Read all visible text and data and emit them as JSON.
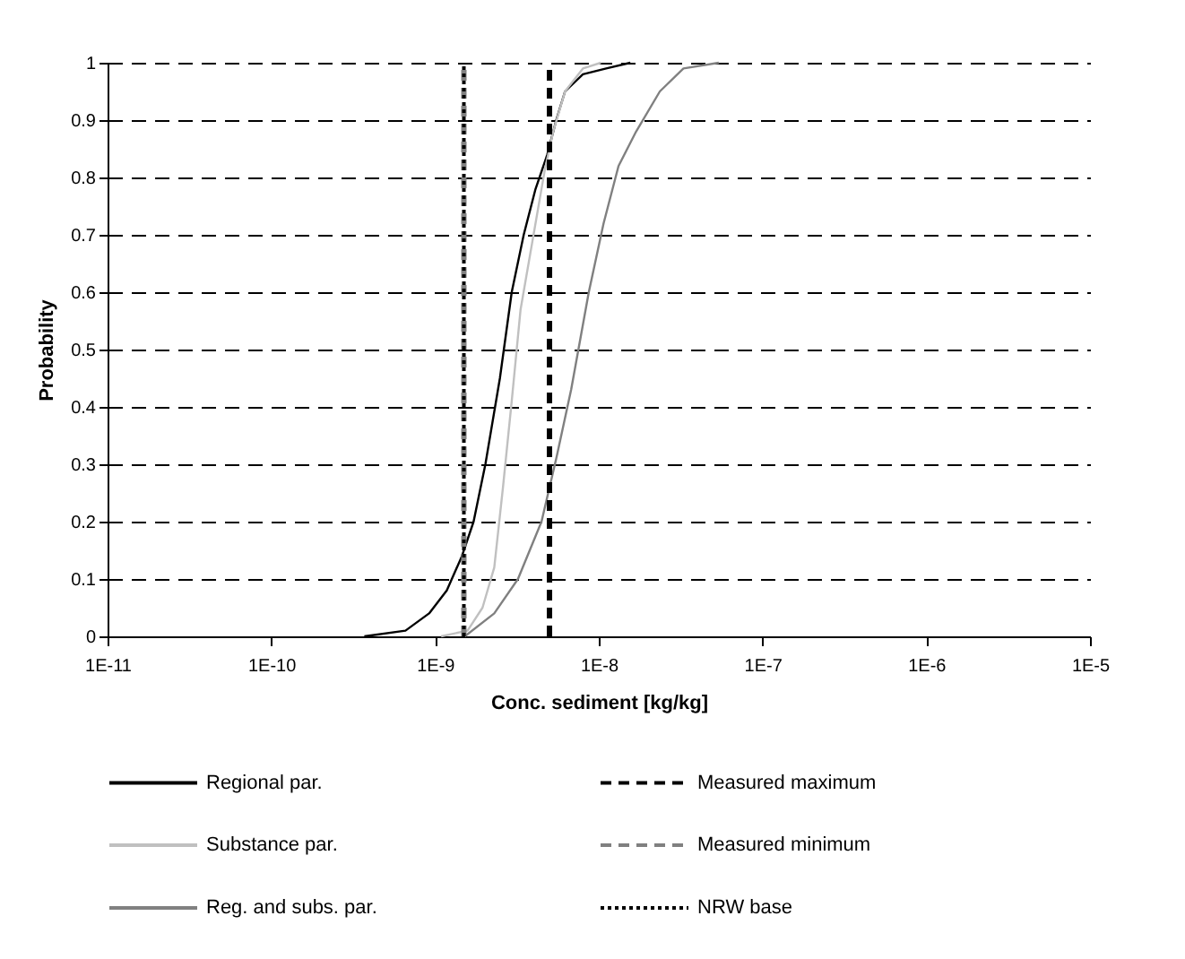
{
  "chart_data": {
    "type": "line",
    "xlabel": "Conc. sediment [kg/kg]",
    "ylabel": "Probability",
    "log": "x",
    "xlim": [
      1e-11,
      1e-05
    ],
    "xticks": [
      {
        "value": 1e-11,
        "label": "1E-11"
      },
      {
        "value": 1e-10,
        "label": "1E-10"
      },
      {
        "value": 1e-09,
        "label": "1E-9"
      },
      {
        "value": 1e-08,
        "label": "1E-8"
      },
      {
        "value": 1e-07,
        "label": "1E-7"
      },
      {
        "value": 1e-06,
        "label": "1E-6"
      },
      {
        "value": 1e-05,
        "label": "1E-5"
      }
    ],
    "ylim": [
      0,
      1
    ],
    "yticks": [
      {
        "value": 0,
        "label": "0"
      },
      0.1,
      0.2,
      0.3,
      0.4,
      0.5,
      0.6,
      0.7,
      0.8,
      0.9,
      {
        "value": 1,
        "label": "1"
      }
    ],
    "grid": "y",
    "legend": "bottom",
    "marker": "none",
    "line_style": "solid",
    "series": [
      {
        "name": "Regional par.",
        "color": "#000000",
        "x": [
          3.7e-10,
          6.6e-10,
          9.2e-10,
          1.18e-09,
          1.46e-09,
          1.72e-09,
          2.03e-09,
          2.49e-09,
          2.94e-09,
          3.48e-09,
          4.11e-09,
          4.85e-09,
          5.5e-09,
          6.22e-09,
          8e-09,
          1.11e-08,
          1.56e-08
        ],
        "values": [
          0,
          0.01,
          0.04,
          0.08,
          0.14,
          0.2,
          0.3,
          0.45,
          0.6,
          0.7,
          0.78,
          0.84,
          0.9,
          0.95,
          0.98,
          0.99,
          1
        ]
      },
      {
        "name": "Substance par.",
        "color": "#c0c0c0",
        "x": [
          1.09e-09,
          1.58e-09,
          1.95e-09,
          2.3e-09,
          2.6e-09,
          2.94e-09,
          3.33e-09,
          3.94e-09,
          4.66e-09,
          5.27e-09,
          6.22e-09,
          8e-09,
          1.03e-08
        ],
        "values": [
          0,
          0.01,
          0.05,
          0.12,
          0.26,
          0.41,
          0.57,
          0.69,
          0.81,
          0.88,
          0.95,
          0.99,
          1
        ]
      },
      {
        "name": "Reg. and subs. par.",
        "color": "#808080",
        "x": [
          1.52e-09,
          2.3e-09,
          3.21e-09,
          4.47e-09,
          5.5e-09,
          6.78e-09,
          8.69e-09,
          1.07e-08,
          1.32e-08,
          1.69e-08,
          2.36e-08,
          3.29e-08,
          5.41e-08
        ],
        "values": [
          0,
          0.04,
          0.1,
          0.2,
          0.31,
          0.43,
          0.6,
          0.72,
          0.82,
          0.88,
          0.95,
          0.99,
          1
        ]
      }
    ],
    "ref_lines": [
      {
        "axis": "x",
        "value": 5e-09,
        "label": "Measured maximum",
        "color": "#000000",
        "line_style": "dashed"
      },
      {
        "axis": "x",
        "value": 1.5e-09,
        "label": "Measured minimum",
        "color": "#808080",
        "line_style": "dashed"
      },
      {
        "axis": "x",
        "value": 1.5e-09,
        "label": "NRW base",
        "color": "#000000",
        "line_style": "dotted"
      }
    ]
  }
}
